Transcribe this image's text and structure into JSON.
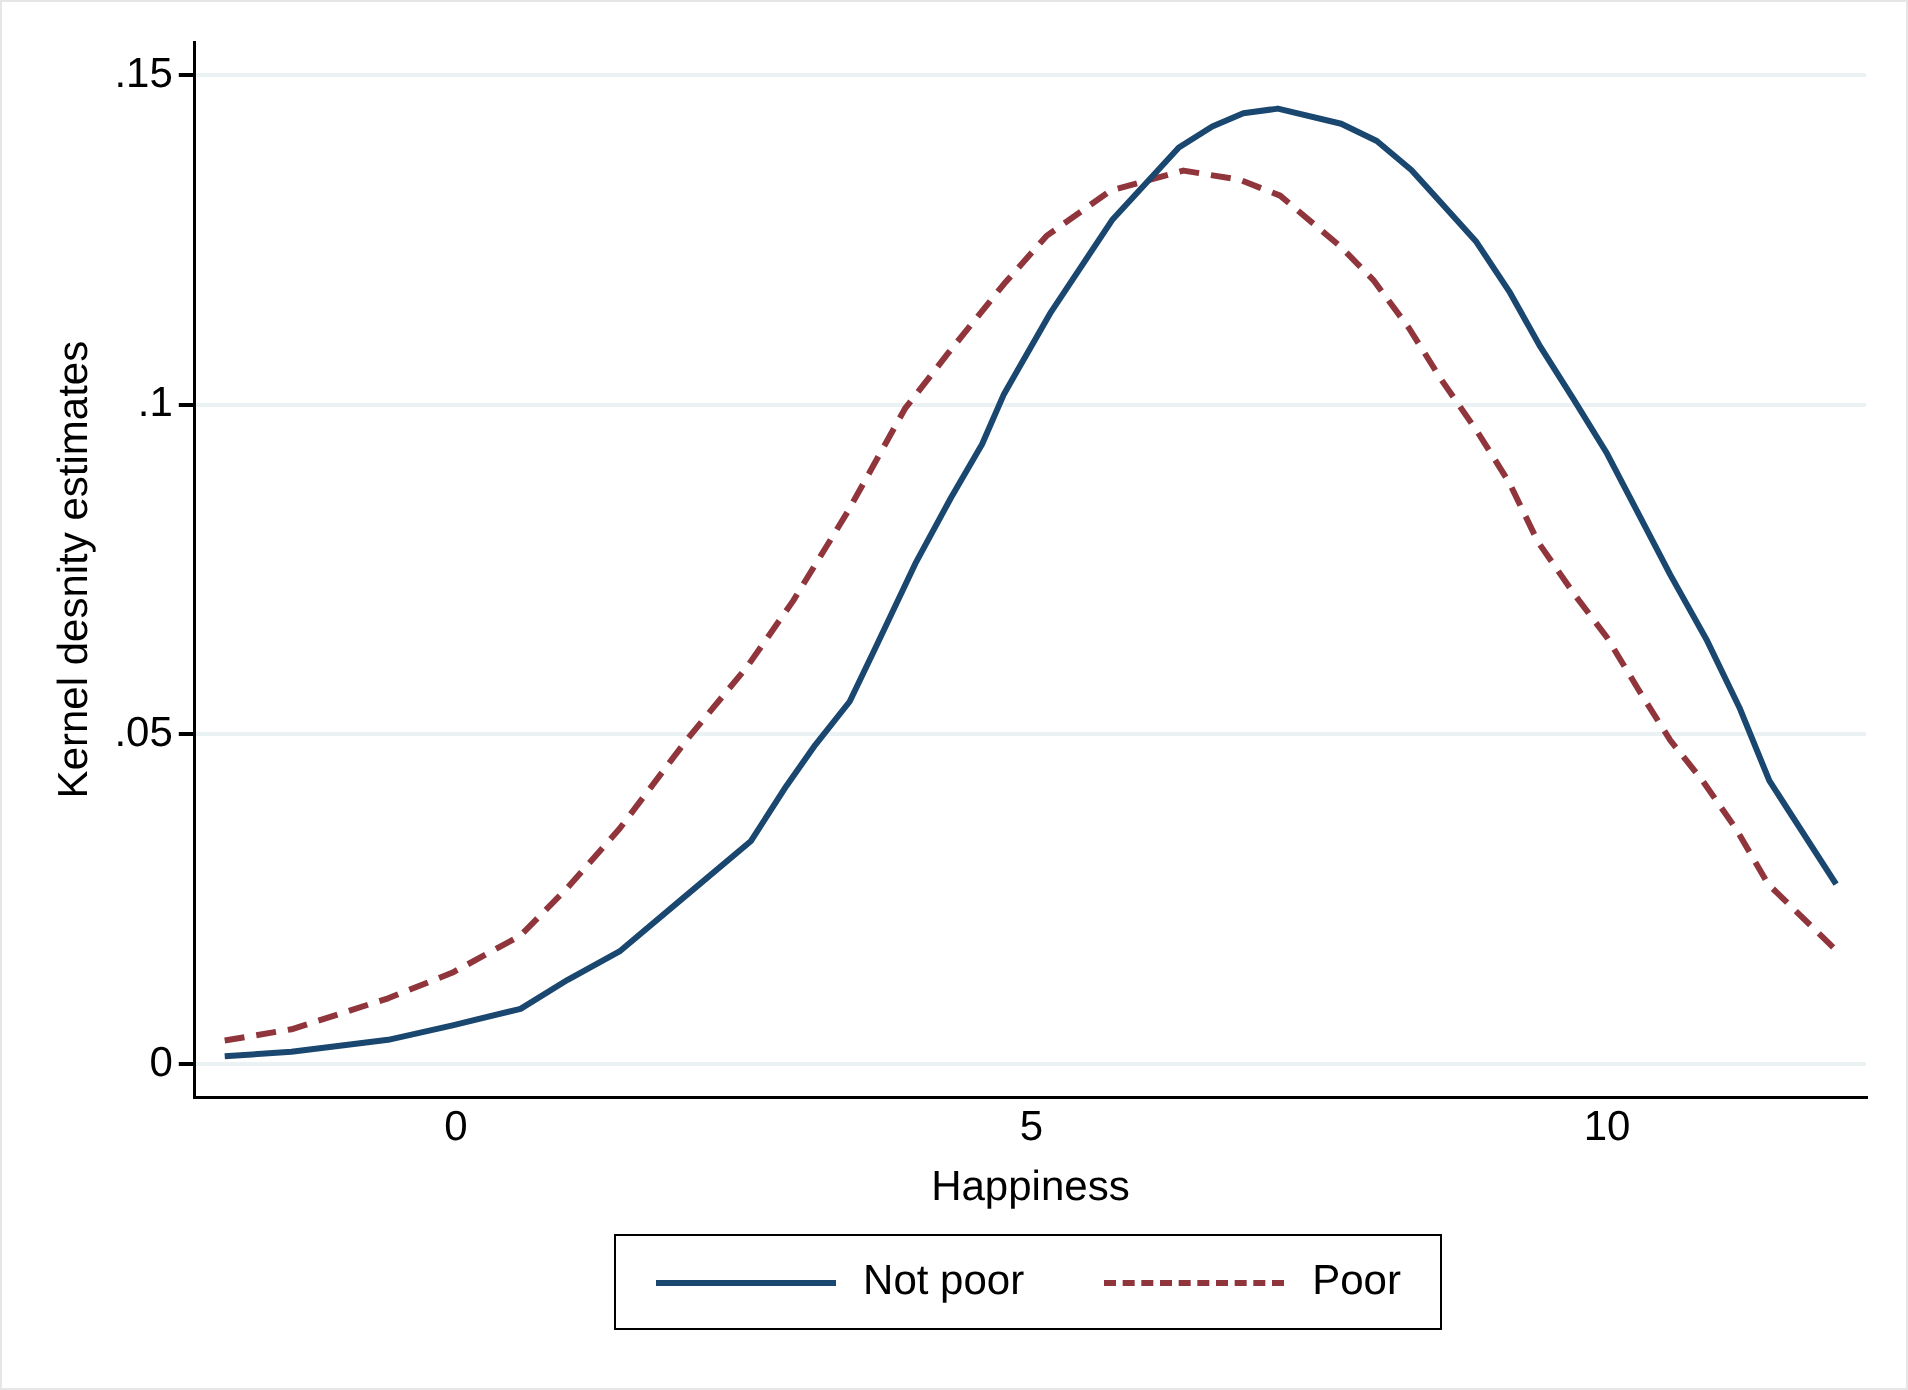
{
  "chart_data": {
    "type": "line",
    "xlabel": "Happiness",
    "ylabel": "Kernel desnity estimates",
    "xlim": [
      -2.27,
      12.25
    ],
    "ylim": [
      -0.005,
      0.155
    ],
    "xticks": [
      0,
      5,
      10
    ],
    "yticks": [
      {
        "value": 0,
        "label": "0"
      },
      {
        "value": 0.05,
        "label": ".05"
      },
      {
        "value": 0.1,
        "label": ".1"
      },
      {
        "value": 0.15,
        "label": ".15"
      }
    ],
    "grid": "y",
    "legend": "bottom",
    "marker": "none",
    "series": [
      {
        "name": "Not poor",
        "color": "#1a476f",
        "line_style": "solid",
        "x": [
          -2.01,
          -1.43,
          -0.59,
          -0.03,
          0.56,
          0.97,
          1.42,
          2.0,
          2.56,
          2.87,
          3.12,
          3.42,
          3.64,
          3.99,
          4.3,
          4.57,
          4.76,
          5.16,
          5.7,
          6.28,
          6.57,
          6.84,
          7.14,
          7.69,
          8.0,
          8.3,
          8.56,
          8.86,
          9.15,
          9.42,
          9.71,
          10.0,
          10.55,
          10.87,
          11.15,
          11.41,
          11.99
        ],
        "values": [
          0.0012,
          0.0019,
          0.0037,
          0.0059,
          0.0084,
          0.0128,
          0.0171,
          0.0256,
          0.0338,
          0.0422,
          0.0484,
          0.055,
          0.063,
          0.0759,
          0.0859,
          0.094,
          0.1016,
          0.1138,
          0.128,
          0.139,
          0.1422,
          0.1442,
          0.1449,
          0.1426,
          0.14,
          0.1356,
          0.1306,
          0.1248,
          0.1172,
          0.1088,
          0.1008,
          0.0926,
          0.0742,
          0.0642,
          0.0541,
          0.043,
          0.0273
        ]
      },
      {
        "name": "Poor",
        "color": "#90353b",
        "line_style": "dashed",
        "x": [
          -2.01,
          -1.43,
          -0.59,
          -0.03,
          0.56,
          0.97,
          1.42,
          2.0,
          2.53,
          2.93,
          3.4,
          3.9,
          4.27,
          4.76,
          5.13,
          5.69,
          6.32,
          6.81,
          7.16,
          7.69,
          7.97,
          8.28,
          8.56,
          8.87,
          9.15,
          9.4,
          9.71,
          10.0,
          10.27,
          10.55,
          10.83,
          11.12,
          11.4,
          11.99
        ],
        "values": [
          0.0036,
          0.0053,
          0.01,
          0.0139,
          0.0195,
          0.0268,
          0.0357,
          0.0491,
          0.0603,
          0.0703,
          0.0837,
          0.0994,
          0.1077,
          0.1183,
          0.1256,
          0.1325,
          0.1355,
          0.1341,
          0.1317,
          0.1239,
          0.1189,
          0.1116,
          0.1038,
          0.096,
          0.0882,
          0.0792,
          0.0714,
          0.0647,
          0.0569,
          0.0491,
          0.043,
          0.0357,
          0.0273,
          0.0173
        ]
      }
    ]
  }
}
